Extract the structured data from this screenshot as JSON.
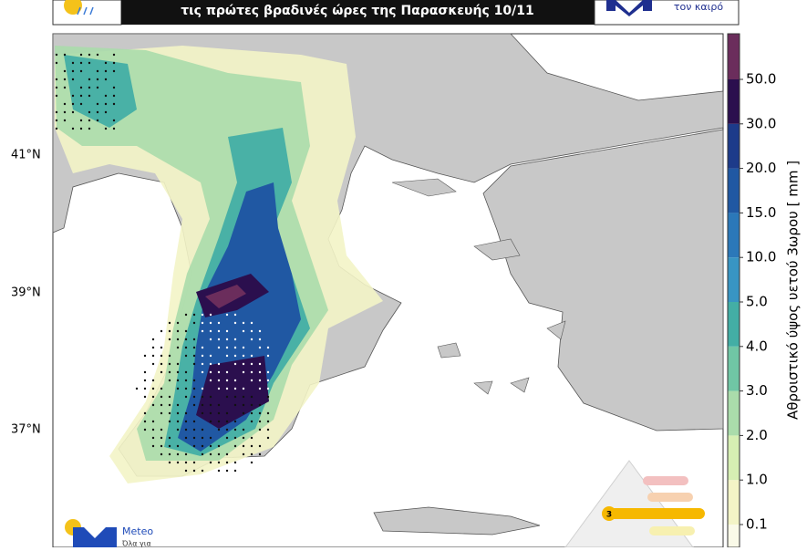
{
  "header": {
    "title": "τις πρώτες βραδινές ώρες της Παρασκευής 10/11",
    "logo_right": "τον καιρό"
  },
  "latitude_labels": [
    "41°N",
    "39°N",
    "37°N"
  ],
  "colorbar": {
    "label": "Αθροιστικό ύψος υετού 3ωρου [ mm ]",
    "ticks": [
      0.1,
      {
        "value": 1,
        "label": "1.0"
      },
      {
        "value": 2,
        "label": "2.0"
      },
      {
        "value": 3,
        "label": "3.0"
      },
      {
        "value": 4,
        "label": "4.0"
      },
      {
        "value": 5,
        "label": "5.0"
      },
      {
        "value": 10,
        "label": "10.0"
      },
      {
        "value": 15,
        "label": "15.0"
      },
      {
        "value": 20,
        "label": "20.0"
      },
      {
        "value": 30,
        "label": "30.0"
      },
      {
        "value": 50,
        "label": "50.0"
      }
    ],
    "colors": [
      "#f3f4c6",
      "#d6efb3",
      "#aadcab",
      "#70c6a5",
      "#43aea5",
      "#3895c3",
      "#2b78b9",
      "#2058a3",
      "#1d3b8a",
      "#2b0f4e",
      "#6b2d5c"
    ]
  },
  "logo_bottom": {
    "name": "Meteo",
    "tagline": "Όλα για"
  },
  "warning": {
    "level": "3"
  }
}
